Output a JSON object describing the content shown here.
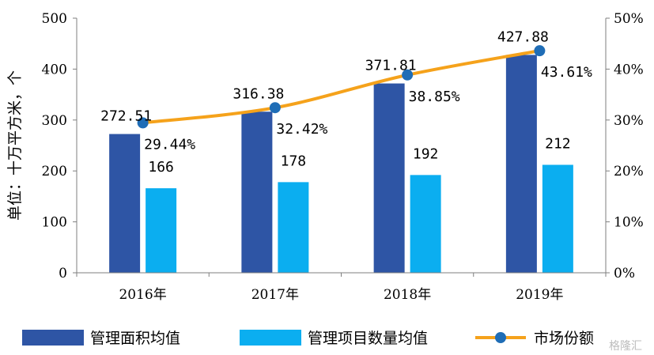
{
  "chart_data": {
    "type": "bar",
    "categories": [
      "2016年",
      "2017年",
      "2018年",
      "2019年"
    ],
    "series": [
      {
        "name": "管理面积均值",
        "type": "bar",
        "axis": "left",
        "color": "#2e55a5",
        "values": [
          272.51,
          316.38,
          371.81,
          427.88
        ],
        "labels": [
          "272.51",
          "316.38",
          "371.81",
          "427.88"
        ]
      },
      {
        "name": "管理项目数量均值",
        "type": "bar",
        "axis": "left",
        "color": "#0baef0",
        "values": [
          166,
          178,
          192,
          212
        ],
        "labels": [
          "166",
          "178",
          "192",
          "212"
        ]
      },
      {
        "name": "市场份额",
        "type": "line",
        "axis": "right",
        "color": "#f5a21b",
        "marker_color": "#1f6db6",
        "values": [
          29.44,
          32.42,
          38.85,
          43.61
        ],
        "labels": [
          "29.44%",
          "32.42%",
          "38.85%",
          "43.61%"
        ]
      }
    ],
    "ylabel": "单位：十万平方米，个",
    "ylim": [
      0,
      500
    ],
    "y_ticks": [
      "0",
      "100",
      "200",
      "300",
      "400",
      "500"
    ],
    "y2lim": [
      0,
      50
    ],
    "y2_ticks": [
      "0%",
      "10%",
      "20%",
      "30%",
      "40%",
      "50%"
    ],
    "grid": false,
    "legend_position": "bottom"
  },
  "watermark": "格隆汇"
}
